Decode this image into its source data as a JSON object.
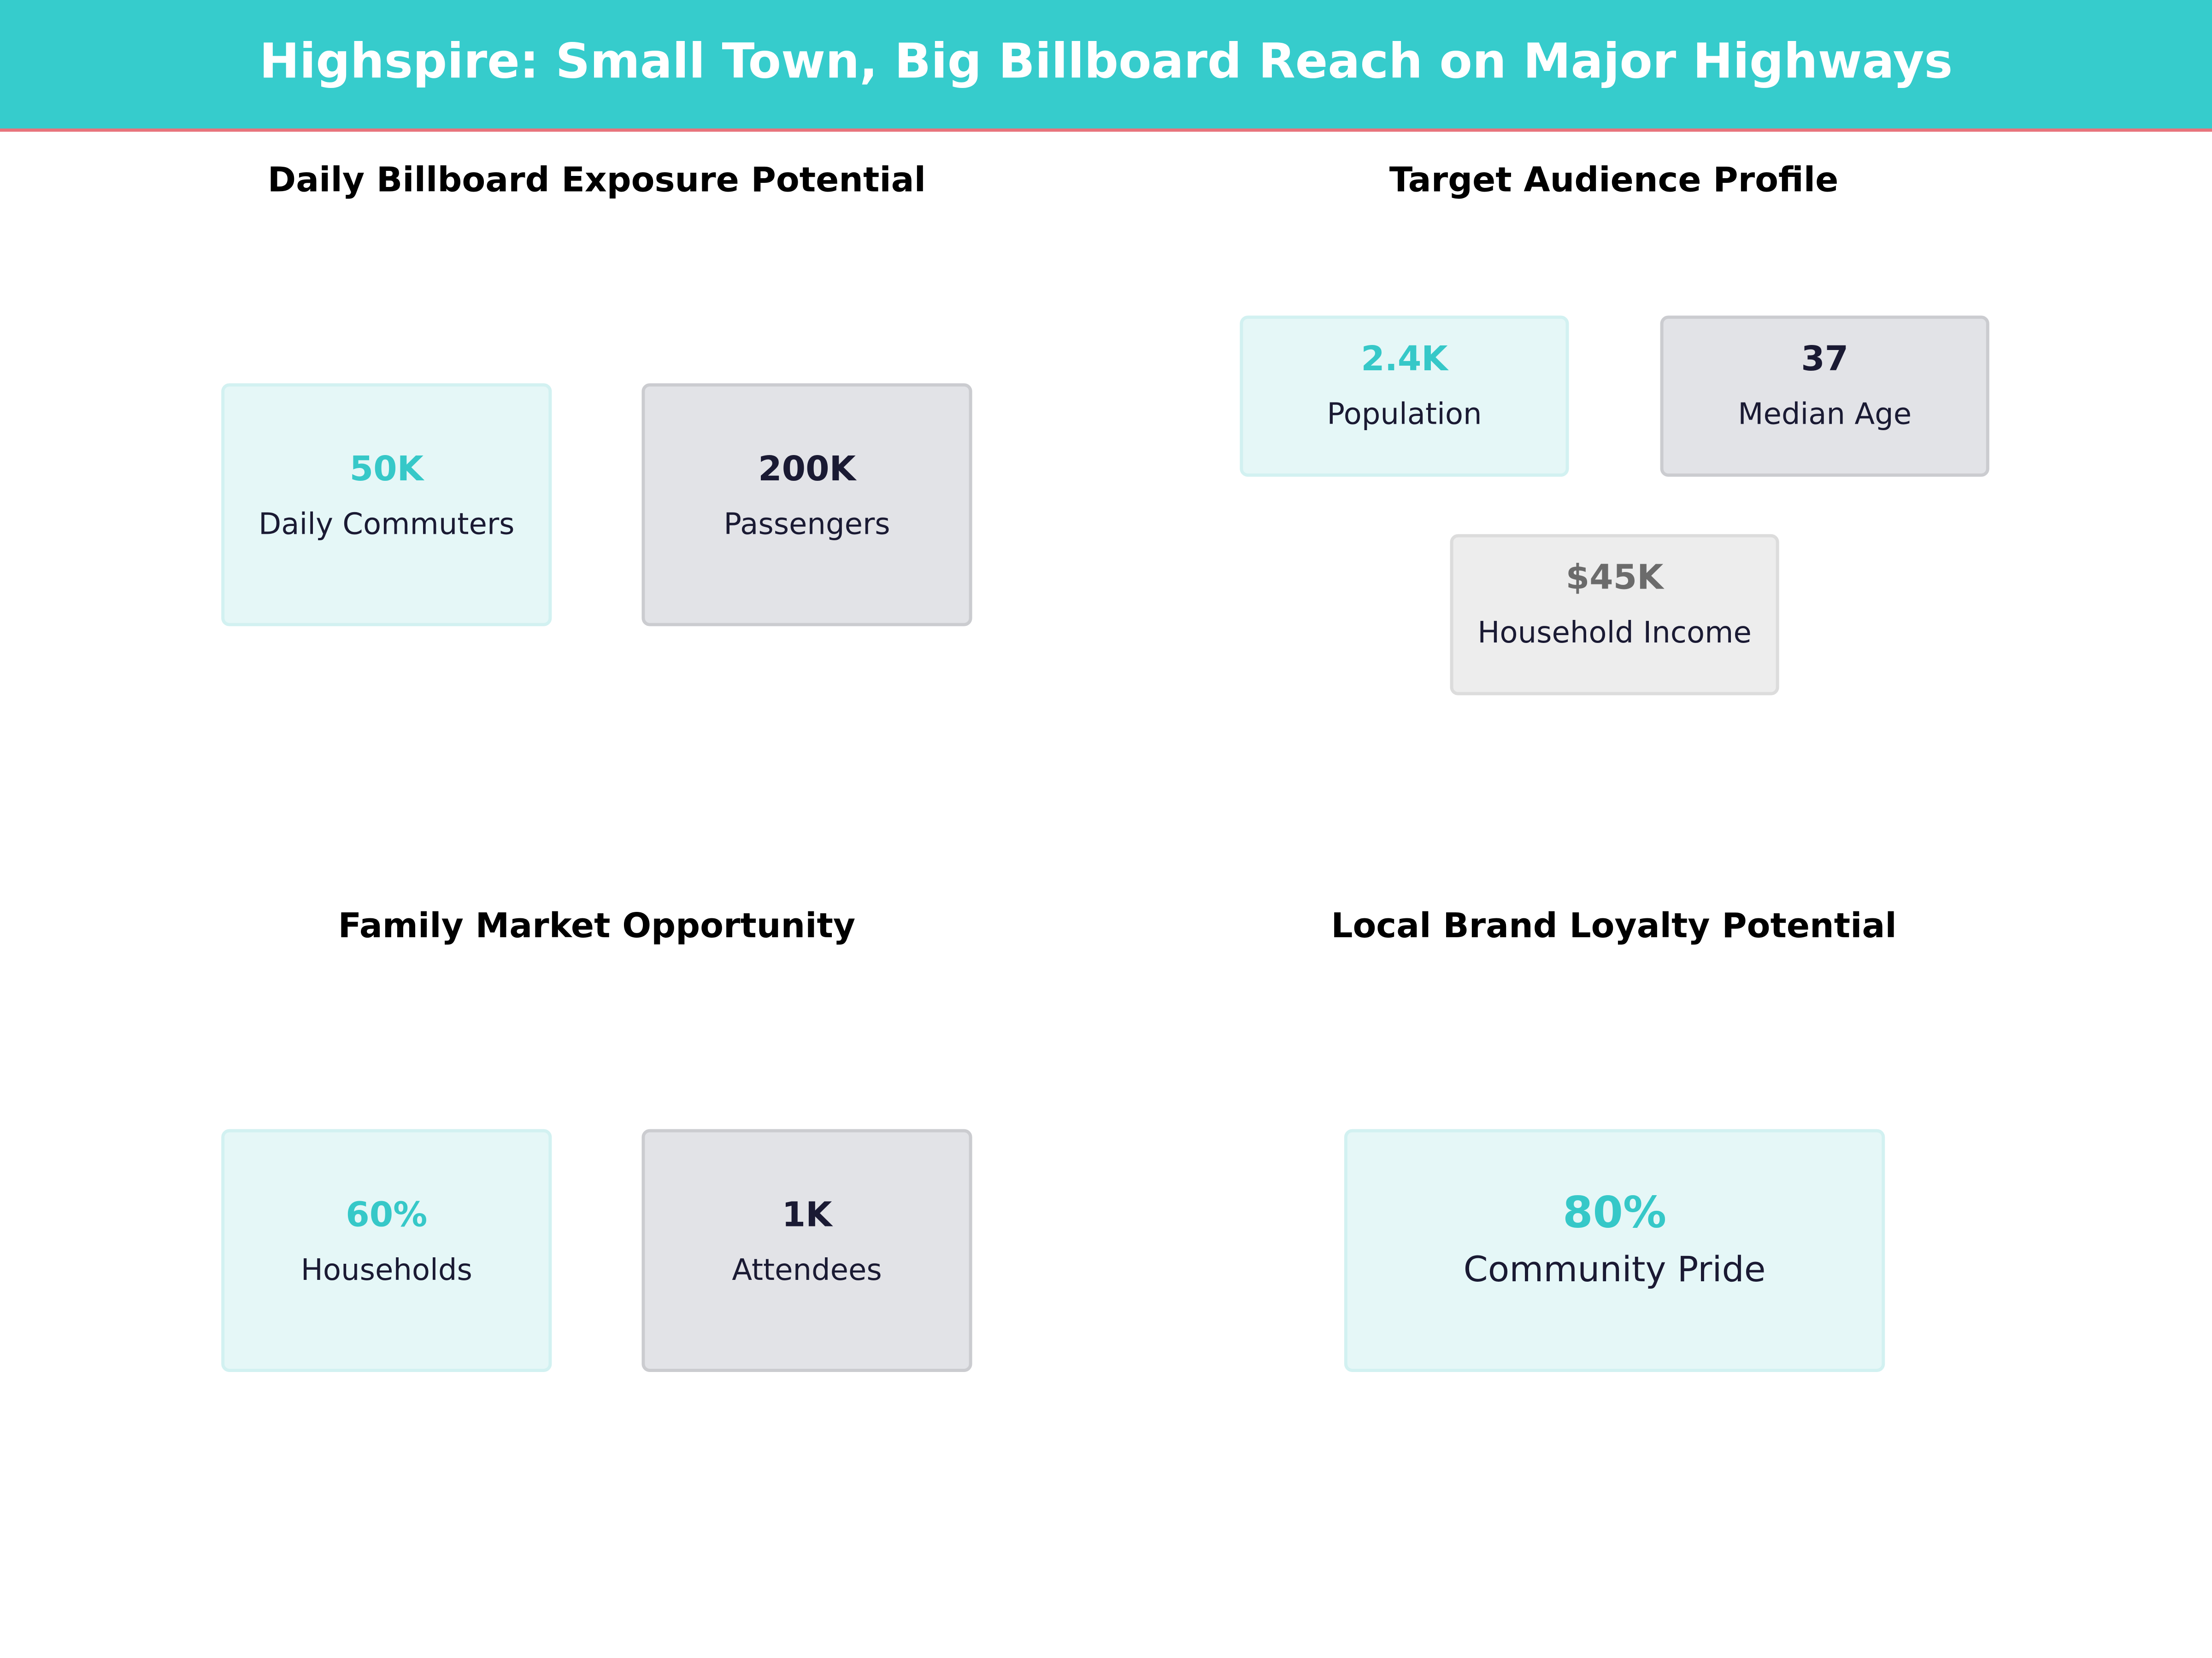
{
  "header": {
    "title": "Highspire: Small Town, Big Billboard Reach on Major Highways"
  },
  "panels": [
    {
      "title": "Daily Billboard Exposure Potential",
      "cards": [
        {
          "value": "50K",
          "label": "Daily Commuters"
        },
        {
          "value": "200K",
          "label": "Passengers"
        }
      ]
    },
    {
      "title": "Target Audience Profile",
      "cards": [
        {
          "value": "2.4K",
          "label": "Population"
        },
        {
          "value": "37",
          "label": "Median Age"
        },
        {
          "value": "$45K",
          "label": "Household Income"
        }
      ]
    },
    {
      "title": "Family Market Opportunity",
      "cards": [
        {
          "value": "60%",
          "label": "Households"
        },
        {
          "value": "1K",
          "label": "Attendees"
        }
      ]
    },
    {
      "title": "Local Brand Loyalty Potential",
      "cards": [
        {
          "value": "80%",
          "label": "Community Pride"
        }
      ]
    }
  ]
}
